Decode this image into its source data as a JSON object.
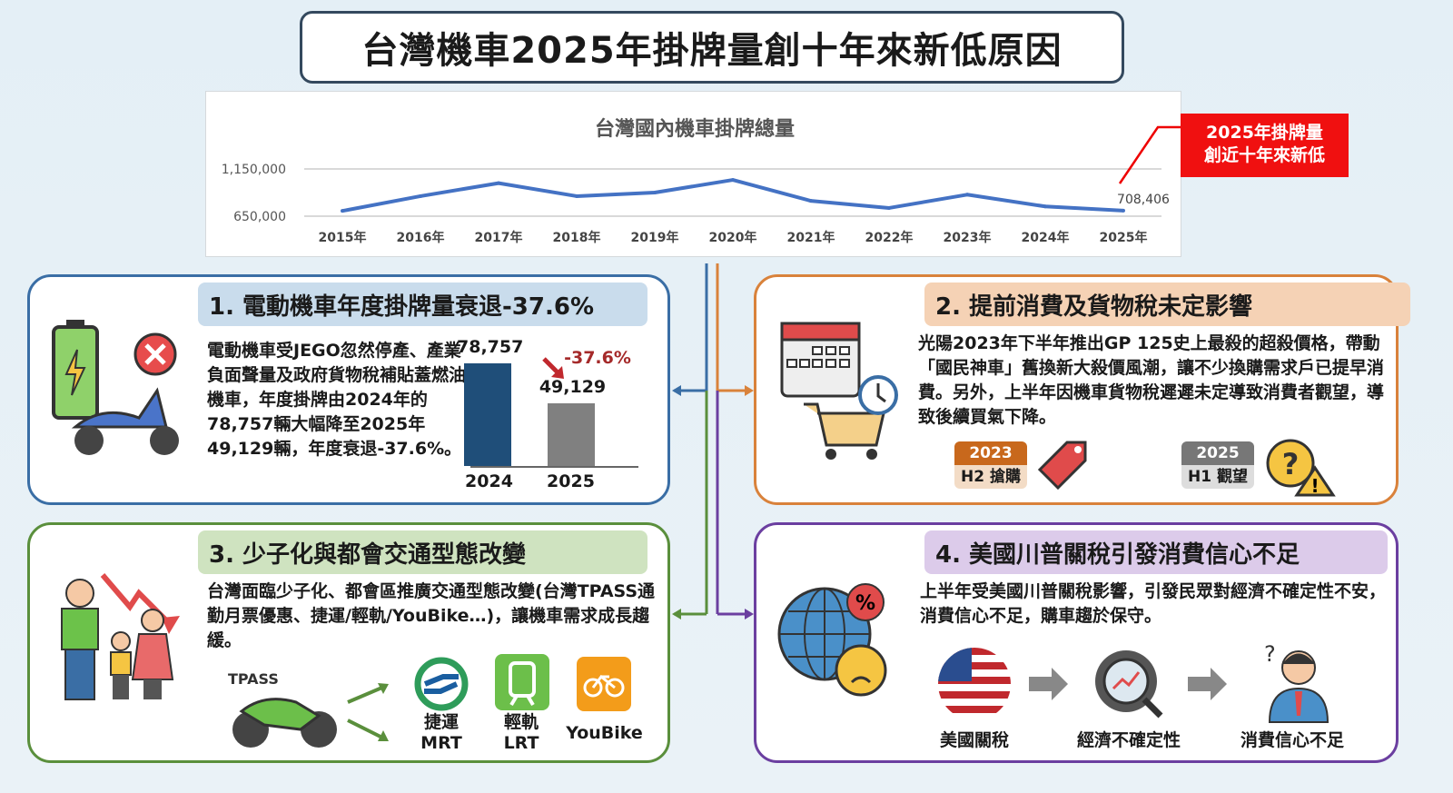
{
  "title": "台灣機車2025年掛牌量創十年來新低原因",
  "callout": {
    "line1": "2025年掛牌量",
    "line2": "創近十年來新低"
  },
  "chart_data": {
    "type": "line",
    "title": "台灣國內機車掛牌總量",
    "categories": [
      "2015年",
      "2016年",
      "2017年",
      "2018年",
      "2019年",
      "2020年",
      "2021年",
      "2022年",
      "2023年",
      "2024年",
      "2025年"
    ],
    "values": [
      706000,
      862000,
      1000000,
      862000,
      900000,
      1034000,
      812000,
      737000,
      878000,
      753000,
      708406
    ],
    "y_ticks": [
      650000,
      1150000
    ],
    "y_tick_labels": [
      "650,000",
      "1,150,000"
    ],
    "ylim": [
      650000,
      1150000
    ],
    "data_label": "708,406",
    "grid": true,
    "color": "#4472c4"
  },
  "panel1": {
    "title": "1. 電動機車年度掛牌量衰退-37.6%",
    "text": "電動機車受JEGO忽然停產、產業負面聲量及政府貨物稅補貼蓋燃油機車，年度掛牌由2024年的78,757輛大幅降至2025年49,129輛，年度衰退-37.6%。",
    "bars": {
      "categories": [
        "2024",
        "2025"
      ],
      "values": [
        78757,
        49129
      ],
      "value_labels": [
        "78,757",
        "49,129"
      ],
      "change": "-37.6%",
      "colors": [
        "#1f4e79",
        "#808080"
      ]
    }
  },
  "panel2": {
    "title": "2. 提前消費及貨物稅未定影響",
    "text": "光陽2023年下半年推出GP 125史上最殺的超殺價格，帶動「國民神車」舊換新大殺價風潮，讓不少換購需求戶已提早消費。另外，上半年因機車貨物稅遲遲未定導致消費者觀望，導致後續買氣下降。",
    "tag1": {
      "year": "2023",
      "label": "H2 搶購"
    },
    "tag2": {
      "year": "2025",
      "label": "H1 觀望"
    }
  },
  "panel3": {
    "title": "3. 少子化與都會交通型態改變",
    "text": "台灣面臨少子化、都會區推廣交通型態改變(台灣TPASS通勤月票優惠、捷運/輕軌/YouBike…)，讓機車需求成長趨緩。",
    "tpass": "TPASS",
    "mrt": {
      "zh": "捷運",
      "en": "MRT"
    },
    "lrt": {
      "zh": "輕軌",
      "en": "LRT"
    },
    "youbike": "YouBike"
  },
  "panel4": {
    "title": "4. 美國川普關稅引發消費信心不足",
    "text": "上半年受美國川普關稅影響，引發民眾對經濟不確定性不安，消費信心不足，購車趨於保守。",
    "flow": [
      "美國關稅",
      "經濟不確定性",
      "消費信心不足"
    ]
  }
}
